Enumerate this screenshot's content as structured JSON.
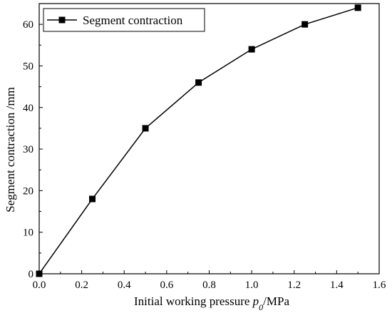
{
  "chart_data": {
    "type": "line",
    "title": "",
    "xlabel": "Initial working pressure ",
    "xlabel_var": "p",
    "xlabel_sub": "0",
    "xlabel_unit": "/MPa",
    "ylabel": "Segment contraction  /mm",
    "xlim": [
      0.0,
      1.6
    ],
    "ylim": [
      0,
      65
    ],
    "xticks": [
      0.0,
      0.2,
      0.4,
      0.6,
      0.8,
      1.0,
      1.2,
      1.4,
      1.6
    ],
    "xtick_labels": [
      "0.0",
      "0.2",
      "0.4",
      "0.6",
      "0.8",
      "1.0",
      "1.2",
      "1.4",
      "1.6"
    ],
    "yticks": [
      0,
      10,
      20,
      30,
      40,
      50,
      60
    ],
    "ytick_labels": [
      "0",
      "10",
      "20",
      "30",
      "40",
      "50",
      "60"
    ],
    "grid": false,
    "legend_position": "top-left",
    "series": [
      {
        "name": "Segment contraction",
        "marker": "square",
        "color": "#000000",
        "x": [
          0.0,
          0.25,
          0.5,
          0.75,
          1.0,
          1.25,
          1.5
        ],
        "y": [
          0,
          18,
          35,
          46,
          54,
          60,
          64
        ]
      }
    ]
  }
}
